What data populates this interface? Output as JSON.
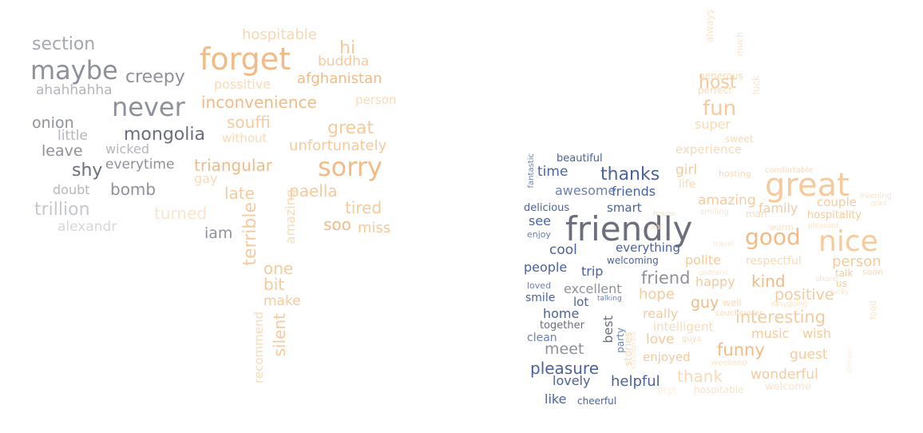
{
  "palette": {
    "gray_dark": "#6b6e7c",
    "gray_mid": "#8e909b",
    "gray_light": "#b4b6be",
    "gray_faint": "#d6d7db",
    "peach_strong": "#f2bb86",
    "peach_mid": "#f6ca9c",
    "peach_light": "#f9dab8",
    "peach_faint": "#fce9d6",
    "blue_dark": "#4a62a0",
    "blue_mid": "#6a7fb3",
    "blue_light": "#94a3c8",
    "blue_faint": "#c2cbe0"
  },
  "negative_cloud": {
    "words": [
      "forget",
      "sorry",
      "never",
      "maybe",
      "section",
      "hospitable",
      "hi",
      "buddha",
      "afghanistan",
      "possitive",
      "creepy",
      "ahahhahha",
      "inconvenience",
      "person",
      "onion",
      "souffi",
      "mongolia",
      "great",
      "little",
      "wicked",
      "without",
      "unfortunately",
      "leave",
      "shy",
      "everytime",
      "triangular",
      "gay",
      "doubt",
      "bomb",
      "late",
      "paella",
      "trillion",
      "tired",
      "turned",
      "alexandr",
      "iam",
      "soo",
      "miss",
      "terrible",
      "amazing",
      "one",
      "bit",
      "make",
      "recommend",
      "silent"
    ]
  },
  "positive_cloud": {
    "words": [
      "friendly",
      "great",
      "nice",
      "good",
      "host",
      "fun",
      "thanks",
      "friends",
      "time",
      "awesome",
      "super",
      "experience",
      "girl",
      "amazing",
      "family",
      "hospitality",
      "couple",
      "smart",
      "see",
      "delicious",
      "enjoy",
      "cool",
      "everything",
      "welcoming",
      "polite",
      "respectful",
      "person",
      "people",
      "trip",
      "friend",
      "kind",
      "positive",
      "happy",
      "hope",
      "guy",
      "well",
      "interesting",
      "excellent",
      "lot",
      "smile",
      "home",
      "really",
      "best",
      "together",
      "intelligent",
      "music",
      "wish",
      "clean",
      "love",
      "meet",
      "funny",
      "guest",
      "pleasure",
      "enjoyed",
      "thank",
      "wonderful",
      "lovely",
      "helpful",
      "welcome",
      "hospitable",
      "first",
      "like",
      "cheerful",
      "beautiful",
      "fantastic",
      "generous",
      "perfect",
      "luck",
      "always",
      "much",
      "sweet",
      "hosting",
      "comfortable",
      "life",
      "evening",
      "glad",
      "smiling",
      "man",
      "house",
      "warm",
      "pleasant",
      "travel",
      "real",
      "girlfriend",
      "share",
      "talk",
      "soon",
      "us",
      "loved",
      "talking",
      "easygoing",
      "lucky",
      "food",
      "party",
      "stories",
      "considerate",
      "guys",
      "weekend",
      "dinner",
      "couchsurfer"
    ]
  }
}
